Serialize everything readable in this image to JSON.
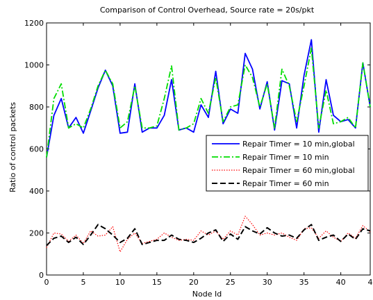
{
  "chart_data": {
    "type": "line",
    "title": "Comparison of Control Overhead, Source rate = 20s/pkt",
    "xlabel": "Node Id",
    "ylabel": "Ratio of control packets",
    "xlim": [
      0,
      44
    ],
    "ylim": [
      0,
      1200
    ],
    "xticks": [
      0,
      5,
      10,
      15,
      20,
      25,
      30,
      35,
      40
    ],
    "xtick_labels": [
      "0",
      "5",
      "10",
      "15",
      "20",
      "25",
      "30",
      "35",
      "40"
    ],
    "xtick_extra_label": "4",
    "yticks": [
      0,
      200,
      400,
      600,
      800,
      1000,
      1200
    ],
    "ytick_labels": [
      "0",
      "200",
      "400",
      "600",
      "800",
      "1000",
      "1200"
    ],
    "grid": false,
    "legend_placement": "right",
    "x": [
      0,
      1,
      2,
      3,
      4,
      5,
      6,
      7,
      8,
      9,
      10,
      11,
      12,
      13,
      14,
      15,
      16,
      17,
      18,
      19,
      20,
      21,
      22,
      23,
      24,
      25,
      26,
      27,
      28,
      29,
      30,
      31,
      32,
      33,
      34,
      35,
      36,
      37,
      38,
      39,
      40,
      41,
      42,
      43,
      44
    ],
    "series": [
      {
        "name": "Repair Timer = 10 min,global",
        "color": "#0000ff",
        "style": "solid",
        "values": [
          560,
          760,
          840,
          700,
          750,
          675,
          780,
          890,
          975,
          900,
          675,
          680,
          910,
          680,
          700,
          700,
          760,
          930,
          690,
          700,
          680,
          810,
          750,
          970,
          720,
          790,
          770,
          1055,
          980,
          790,
          920,
          690,
          925,
          910,
          700,
          950,
          1120,
          680,
          930,
          760,
          730,
          740,
          700,
          1010,
          800
        ]
      },
      {
        "name": "Repair Timer = 10 min",
        "color": "#00dd00",
        "style": "dashdot",
        "values": [
          560,
          840,
          910,
          700,
          720,
          700,
          790,
          900,
          975,
          910,
          700,
          730,
          900,
          700,
          700,
          710,
          840,
          995,
          690,
          700,
          720,
          840,
          770,
          940,
          730,
          800,
          810,
          1000,
          940,
          800,
          910,
          700,
          980,
          900,
          730,
          900,
          1080,
          700,
          880,
          720,
          730,
          750,
          700,
          1010,
          800
        ]
      },
      {
        "name": "Repair Timer = 60 min,global",
        "color": "#ff0000",
        "style": "dotted",
        "values": [
          130,
          200,
          195,
          160,
          190,
          150,
          210,
          185,
          190,
          230,
          110,
          170,
          200,
          150,
          160,
          170,
          200,
          180,
          165,
          170,
          165,
          210,
          190,
          210,
          170,
          210,
          190,
          280,
          240,
          190,
          200,
          190,
          200,
          180,
          165,
          220,
          225,
          175,
          210,
          180,
          160,
          200,
          175,
          235,
          205
        ]
      },
      {
        "name": "Repair Timer = 60 min",
        "color": "#000000",
        "style": "dashed",
        "values": [
          140,
          175,
          185,
          155,
          180,
          145,
          190,
          240,
          220,
          190,
          155,
          175,
          220,
          145,
          155,
          165,
          165,
          190,
          170,
          165,
          155,
          175,
          200,
          215,
          160,
          195,
          170,
          230,
          210,
          195,
          225,
          200,
          185,
          190,
          175,
          215,
          240,
          165,
          180,
          190,
          160,
          195,
          170,
          220,
          210
        ]
      }
    ]
  }
}
